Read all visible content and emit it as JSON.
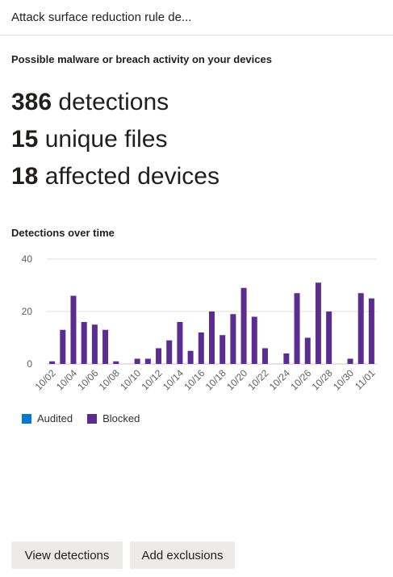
{
  "header": {
    "title": "Attack surface reduction rule de..."
  },
  "summary": {
    "subtitle": "Possible malware or breach activity on your devices",
    "detections_count": "386",
    "detections_label": " detections",
    "files_count": "15",
    "files_label": " unique files",
    "devices_count": "18",
    "devices_label": " affected devices"
  },
  "chart_section": {
    "title": "Detections over time"
  },
  "chart_data": {
    "type": "bar",
    "title": "Detections over time",
    "xlabel": "",
    "ylabel": "",
    "ylim": [
      0,
      40
    ],
    "yticks": [
      0,
      20,
      40
    ],
    "grid": true,
    "legend_placement": "bottom-left",
    "categories": [
      "10/02",
      "10/03",
      "10/04",
      "10/05",
      "10/06",
      "10/07",
      "10/08",
      "10/09",
      "10/10",
      "10/11",
      "10/12",
      "10/13",
      "10/14",
      "10/15",
      "10/16",
      "10/17",
      "10/18",
      "10/19",
      "10/20",
      "10/21",
      "10/22",
      "10/23",
      "10/24",
      "10/25",
      "10/26",
      "10/27",
      "10/28",
      "10/29",
      "10/30",
      "10/31",
      "11/01"
    ],
    "tick_labels": [
      "10/02",
      "10/04",
      "10/06",
      "10/08",
      "10/10",
      "10/12",
      "10/14",
      "10/16",
      "10/18",
      "10/20",
      "10/22",
      "10/24",
      "10/26",
      "10/28",
      "10/30",
      "11/01"
    ],
    "series": [
      {
        "name": "Audited",
        "color": "#0078d4",
        "values": [
          0,
          0,
          0,
          0,
          0,
          0,
          0,
          0,
          0,
          0,
          0,
          0,
          0,
          0,
          0,
          0,
          0,
          0,
          0,
          0,
          0,
          0,
          0,
          0,
          0,
          0,
          0,
          0,
          0,
          0,
          0
        ]
      },
      {
        "name": "Blocked",
        "color": "#5c2d91",
        "values": [
          1,
          13,
          26,
          16,
          15,
          13,
          1,
          0,
          2,
          2,
          6,
          9,
          16,
          5,
          12,
          20,
          11,
          19,
          29,
          18,
          6,
          0,
          4,
          27,
          10,
          31,
          20,
          0,
          2,
          27,
          25
        ]
      }
    ]
  },
  "actions": {
    "view_detections": "View detections",
    "add_exclusions": "Add exclusions"
  }
}
